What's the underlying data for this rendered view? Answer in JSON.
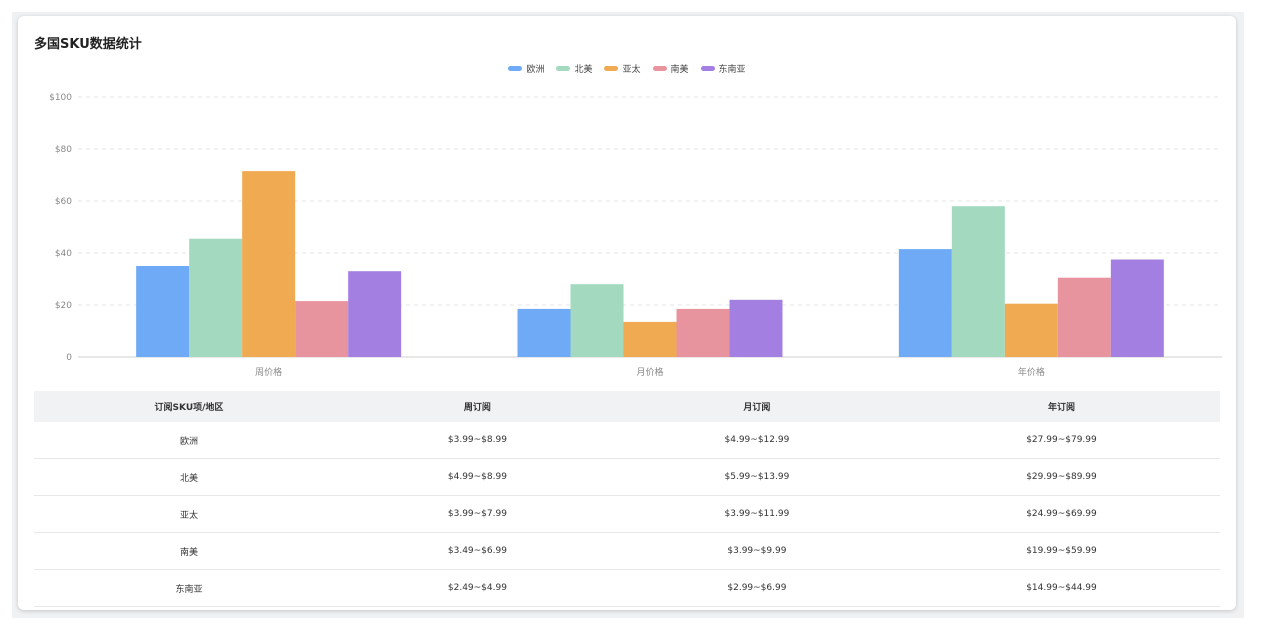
{
  "title": "多国SKU数据统计",
  "colors": {
    "欧洲": "#6eaaf5",
    "北美": "#a2d9bf",
    "亚太": "#f0aa52",
    "南美": "#e8949e",
    "东南亚": "#a37fe2"
  },
  "chart_data": {
    "type": "bar",
    "title": "多国SKU数据统计",
    "categories": [
      "周价格",
      "月价格",
      "年价格"
    ],
    "series": [
      {
        "name": "欧洲",
        "values": [
          35,
          18.5,
          41.5
        ]
      },
      {
        "name": "北美",
        "values": [
          45.5,
          28,
          58
        ]
      },
      {
        "name": "亚太",
        "values": [
          71.5,
          13.5,
          20.5
        ]
      },
      {
        "name": "南美",
        "values": [
          21.5,
          18.5,
          30.5
        ]
      },
      {
        "name": "东南亚",
        "values": [
          33,
          22,
          37.5
        ]
      }
    ],
    "ylim": [
      0,
      100
    ],
    "yticks": [
      "0",
      "$20",
      "$40",
      "$60",
      "$80",
      "$100"
    ],
    "grid": true,
    "legend_position": "top-center"
  },
  "table": {
    "headers": [
      "订阅SKU项/地区",
      "周订阅",
      "月订阅",
      "年订阅"
    ],
    "rows": [
      [
        "欧洲",
        "$3.99~$8.99",
        "$4.99~$12.99",
        "$27.99~$79.99"
      ],
      [
        "北美",
        "$4.99~$8.99",
        "$5.99~$13.99",
        "$29.99~$89.99"
      ],
      [
        "亚太",
        "$3.99~$7.99",
        "$3.99~$11.99",
        "$24.99~$69.99"
      ],
      [
        "南美",
        "$3.49~$6.99",
        "$3.99~$9.99",
        "$19.99~$59.99"
      ],
      [
        "东南亚",
        "$2.49~$4.99",
        "$2.99~$6.99",
        "$14.99~$44.99"
      ]
    ]
  }
}
